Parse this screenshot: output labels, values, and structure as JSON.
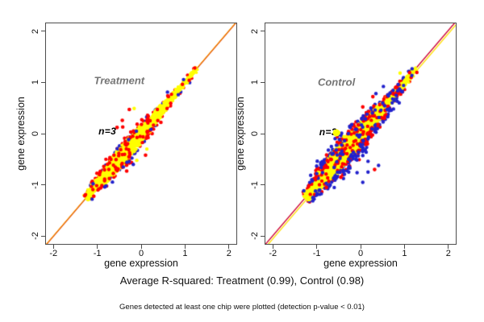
{
  "captions": {
    "r_squared": "Average R-squared: Treatment (0.99), Control (0.98)",
    "note": "Genes detected at least one chip were plotted (detection p-value < 0.01)"
  },
  "colors": {
    "cloud_yellow": "#ffff00",
    "series_red": "#ff0000",
    "series_blue": "#2222cc",
    "identity_orange": "#dd4400",
    "identity_crimson": "#cc0033",
    "fit_yellow": "#ffdd00",
    "annotation_gray": "#757575",
    "axis_gray": "#4d4d4d"
  },
  "chart_data": [
    {
      "type": "scatter",
      "title": "Treatment",
      "annotation": "n=3",
      "xlabel": "gene expression",
      "ylabel": "gene expression",
      "xlim": [
        -2.17,
        2.17
      ],
      "ylim": [
        -2.15,
        2.15
      ],
      "xticks": [
        -2,
        -1,
        0,
        1,
        2
      ],
      "yticks": [
        -2,
        -1,
        0,
        1,
        2
      ],
      "grid": false,
      "legend": "none",
      "r_squared": 0.99,
      "title_pos": [
        -0.5,
        1.03
      ],
      "annotation_pos": [
        -0.77,
        0.04
      ],
      "lines": [
        {
          "color": "#dd4400",
          "width": 1.4,
          "dy": 0
        },
        {
          "color": "#ffaa00",
          "width": 0.9,
          "dy": 0.012
        }
      ],
      "cloud": {
        "seed": 11,
        "n": 3000,
        "color": "#ffff00",
        "radius": 1.8,
        "t_mean": -0.28,
        "t_sd": 0.52,
        "uniform_frac": 0.22,
        "t_min": -1.26,
        "t_max": 1.27,
        "width": 0.082,
        "taper_center": -0.35,
        "taper_sd": 0.62
      },
      "rims": [
        {
          "seed": 21,
          "color": "#ff0000",
          "n": 150,
          "radius": 2.2,
          "rim_base": 1.7,
          "rim_spread": 0.9,
          "over_frac": 0.35,
          "inner_n": 30
        },
        {
          "seed": 31,
          "color": "#2222cc",
          "n": 45,
          "radius": 2.2,
          "rim_base": 2.0,
          "rim_spread": 1.0,
          "over_frac": 0.25,
          "inner_n": 0
        }
      ],
      "outliers": [
        {
          "color": "#ff0000",
          "radius": 2.3,
          "points": [
            [
              -0.27,
              0.47
            ],
            [
              -0.43,
              0.26
            ],
            [
              -0.55,
              0.12
            ],
            [
              -0.42,
              0.13
            ],
            [
              -0.33,
              -0.73
            ],
            [
              -0.57,
              -0.7
            ],
            [
              -0.62,
              -0.42
            ],
            [
              -1.08,
              -1.22
            ],
            [
              -0.95,
              -0.8
            ],
            [
              0.45,
              0.22
            ],
            [
              0.1,
              -0.42
            ]
          ]
        },
        {
          "color": "#2222cc",
          "radius": 2.2,
          "points": [
            [
              -0.8,
              -1.02
            ],
            [
              0.6,
              0.81
            ],
            [
              -0.18,
              -0.6
            ]
          ]
        },
        {
          "color": "#ffff00",
          "radius": 2.2,
          "points": [
            [
              -0.16,
              0.49
            ],
            [
              0.13,
              -0.3
            ],
            [
              -0.1,
              -0.52
            ]
          ]
        }
      ]
    },
    {
      "type": "scatter",
      "title": "Control",
      "annotation": "n=3",
      "xlabel": "gene expression",
      "ylabel": "gene expression",
      "xlim": [
        -2.17,
        2.17
      ],
      "ylim": [
        -2.15,
        2.15
      ],
      "xticks": [
        -2,
        -1,
        0,
        1,
        2
      ],
      "yticks": [
        -2,
        -1,
        0,
        1,
        2
      ],
      "grid": false,
      "legend": "none",
      "r_squared": 0.98,
      "title_pos": [
        -0.55,
        1.01
      ],
      "annotation_pos": [
        -0.74,
        0.03
      ],
      "blob": {
        "pos": [
          -0.56,
          0.02
        ],
        "diameter": 9,
        "color": "#ffff00"
      },
      "lines": [
        {
          "color": "#cc0033",
          "width": 1.4,
          "dy": 0.012
        },
        {
          "color": "#ffdd00",
          "width": 1.3,
          "dy": -0.05
        }
      ],
      "cloud": {
        "seed": 12,
        "n": 3000,
        "color": "#ffff00",
        "radius": 1.8,
        "t_mean": -0.28,
        "t_sd": 0.52,
        "uniform_frac": 0.22,
        "t_min": -1.26,
        "t_max": 1.27,
        "width": 0.105,
        "taper_center": -0.35,
        "taper_sd": 0.62
      },
      "rims": [
        {
          "seed": 22,
          "color": "#ff0000",
          "n": 260,
          "radius": 2.2,
          "rim_base": 1.6,
          "rim_spread": 1.0,
          "over_frac": 0.45,
          "inner_n": 60
        },
        {
          "seed": 32,
          "color": "#2222cc",
          "n": 210,
          "radius": 2.2,
          "rim_base": 1.9,
          "rim_spread": 1.4,
          "over_frac": 0.45,
          "inner_n": 30
        }
      ],
      "outliers": [
        {
          "color": "#ff0000",
          "radius": 2.3,
          "points": [
            [
              0.32,
              -0.7
            ],
            [
              -1.02,
              -0.85
            ],
            [
              -0.78,
              -1.05
            ],
            [
              0.05,
              0.52
            ],
            [
              0.28,
              0.72
            ],
            [
              0.4,
              0.18
            ],
            [
              -0.45,
              -0.85
            ],
            [
              0.52,
              0.3
            ]
          ]
        },
        {
          "color": "#2222cc",
          "radius": 2.2,
          "points": [
            [
              -0.27,
              -0.75
            ],
            [
              -0.08,
              -0.76
            ],
            [
              0.17,
              -0.75
            ],
            [
              0.41,
              -0.62
            ],
            [
              0.17,
              -0.54
            ],
            [
              0.62,
              0.33
            ],
            [
              0.75,
              0.48
            ],
            [
              0.35,
              0.78
            ],
            [
              0.52,
              0.92
            ],
            [
              0.88,
              0.6
            ],
            [
              -0.6,
              -1.05
            ],
            [
              0.05,
              -0.95
            ]
          ]
        },
        {
          "color": "#ffff00",
          "radius": 2.2,
          "points": [
            [
              -0.5,
              0.02
            ],
            [
              -0.38,
              -0.06
            ],
            [
              0.9,
              1.18
            ]
          ]
        }
      ]
    }
  ]
}
